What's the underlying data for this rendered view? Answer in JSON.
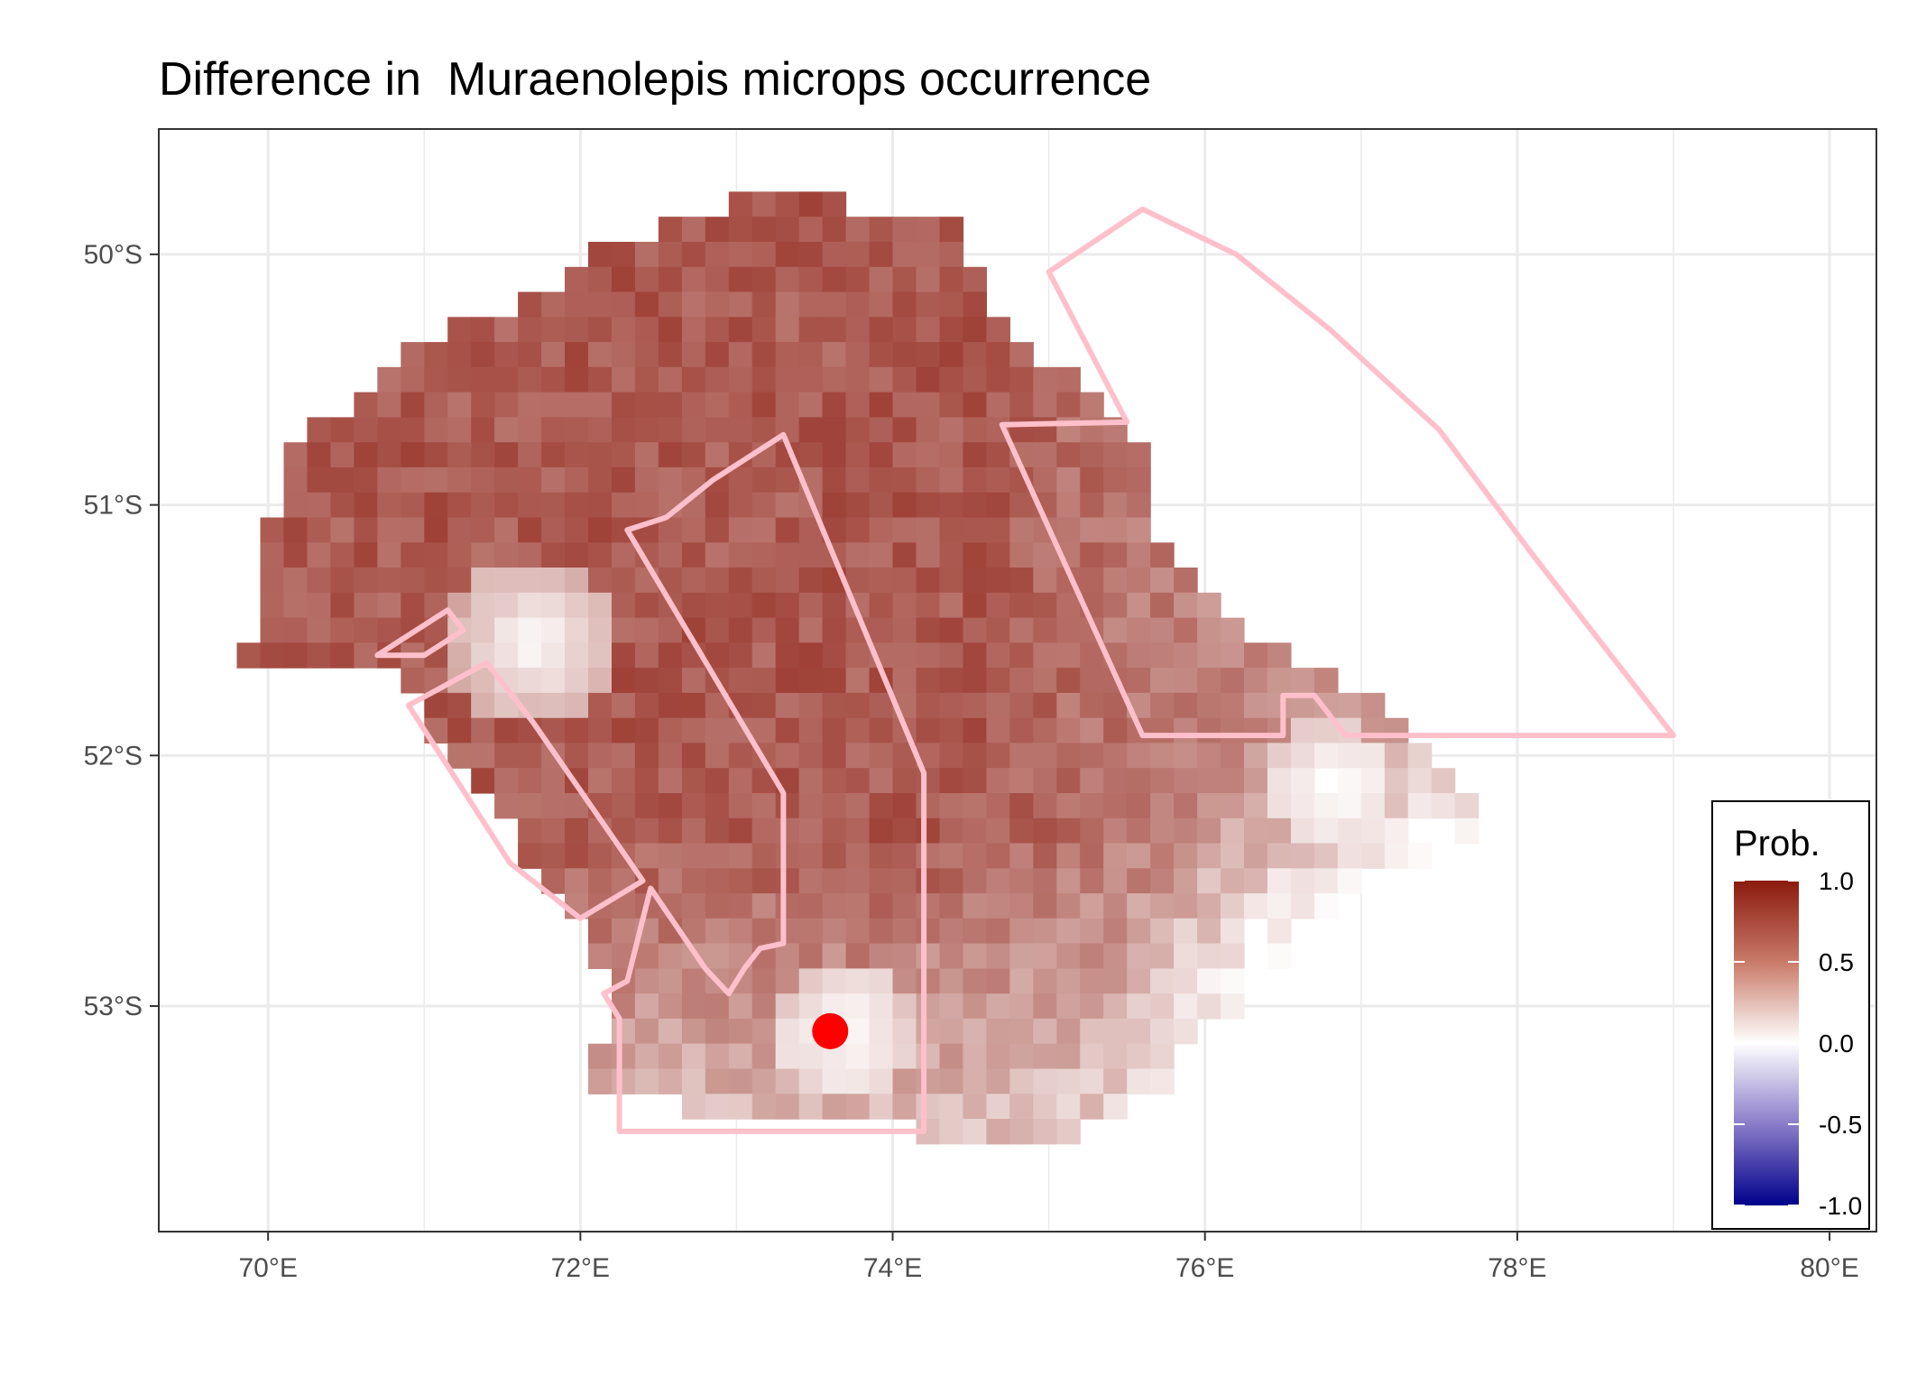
{
  "title": "Difference in  Muraenolepis microps occurrence",
  "colors": {
    "high": "#8b1a0e",
    "mid": "#ffffff",
    "low": "#00008b",
    "outline": "#ffc0cb",
    "point": "#ff0000",
    "grid": "#ebebeb",
    "panel_border": "#333333"
  },
  "axes": {
    "x": {
      "range": [
        69.3,
        80.3
      ],
      "ticks": [
        70,
        72,
        74,
        76,
        78,
        80
      ],
      "tick_labels": [
        "70°E",
        "72°E",
        "74°E",
        "76°E",
        "78°E",
        "80°E"
      ]
    },
    "y": {
      "range": [
        -53.9,
        -49.5
      ],
      "ticks": [
        -50,
        -51,
        -52,
        -53
      ],
      "tick_labels": [
        "50°S",
        "51°S",
        "52°S",
        "53°S"
      ]
    }
  },
  "legend": {
    "title": "Prob.",
    "labels": [
      "1.0",
      "0.5",
      "0.0",
      "-0.5",
      "-1.0"
    ],
    "values": [
      1.0,
      0.5,
      0.0,
      -0.5,
      -1.0
    ]
  },
  "map_data": {
    "cell_size_deg": {
      "lon": 0.15,
      "lat": 0.1
    },
    "region_outline": [
      [
        69.85,
        -51.6
      ],
      [
        70.05,
        -51.0
      ],
      [
        70.2,
        -50.7
      ],
      [
        70.5,
        -50.6
      ],
      [
        70.9,
        -50.4
      ],
      [
        71.2,
        -50.3
      ],
      [
        71.6,
        -50.2
      ],
      [
        72.1,
        -50.0
      ],
      [
        72.5,
        -49.9
      ],
      [
        72.9,
        -49.8
      ],
      [
        73.1,
        -49.7
      ],
      [
        73.4,
        -49.7
      ],
      [
        73.7,
        -49.8
      ],
      [
        74.0,
        -49.8
      ],
      [
        74.4,
        -49.9
      ],
      [
        74.6,
        -50.2
      ],
      [
        74.9,
        -50.4
      ],
      [
        75.2,
        -50.5
      ],
      [
        75.6,
        -50.8
      ],
      [
        75.7,
        -51.1
      ],
      [
        76.0,
        -51.3
      ],
      [
        76.2,
        -51.5
      ],
      [
        76.6,
        -51.6
      ],
      [
        76.9,
        -51.7
      ],
      [
        77.2,
        -51.85
      ],
      [
        77.5,
        -52.0
      ],
      [
        77.7,
        -52.2
      ],
      [
        78.0,
        -52.4
      ],
      [
        78.3,
        -52.7
      ],
      [
        78.5,
        -52.9
      ],
      [
        77.6,
        -53.0
      ],
      [
        76.8,
        -53.1
      ],
      [
        76.0,
        -53.25
      ],
      [
        75.3,
        -53.45
      ],
      [
        74.8,
        -53.6
      ],
      [
        74.2,
        -53.5
      ],
      [
        73.4,
        -53.45
      ],
      [
        72.6,
        -53.4
      ],
      [
        72.0,
        -53.35
      ],
      [
        72.1,
        -53.2
      ],
      [
        72.2,
        -52.9
      ],
      [
        71.9,
        -52.6
      ],
      [
        71.6,
        -52.35
      ],
      [
        71.2,
        -52.0
      ],
      [
        71.0,
        -51.85
      ],
      [
        70.8,
        -51.7
      ],
      [
        70.4,
        -51.65
      ],
      [
        70.0,
        -51.65
      ]
    ],
    "white_patches": [
      {
        "lon": 71.7,
        "lat": -51.55,
        "radius_deg": 0.35
      },
      {
        "lon": 73.7,
        "lat": -53.1,
        "radius_deg": 0.3
      },
      {
        "lon": 76.8,
        "lat": -52.1,
        "radius_deg": 0.25
      }
    ],
    "outlined_areas": [
      {
        "name": "fan-sector",
        "points": [
          [
            75.0,
            -50.07
          ],
          [
            75.6,
            -49.82
          ],
          [
            76.2,
            -50.0
          ],
          [
            76.8,
            -50.3
          ],
          [
            77.5,
            -50.7
          ],
          [
            78.1,
            -51.2
          ],
          [
            78.6,
            -51.6
          ],
          [
            79.0,
            -51.92
          ],
          [
            76.9,
            -51.92
          ],
          [
            76.7,
            -51.76
          ],
          [
            76.5,
            -51.76
          ],
          [
            76.5,
            -51.92
          ],
          [
            75.6,
            -51.92
          ],
          [
            74.7,
            -50.68
          ],
          [
            75.5,
            -50.67
          ]
        ]
      },
      {
        "name": "central-strip",
        "points": [
          [
            72.3,
            -51.1
          ],
          [
            72.55,
            -51.05
          ],
          [
            72.85,
            -50.9
          ],
          [
            73.3,
            -50.72
          ],
          [
            74.2,
            -52.07
          ],
          [
            74.2,
            -53.5
          ],
          [
            72.25,
            -53.5
          ],
          [
            72.25,
            -53.05
          ],
          [
            72.15,
            -52.95
          ],
          [
            72.3,
            -52.9
          ],
          [
            72.45,
            -52.53
          ],
          [
            72.8,
            -52.85
          ],
          [
            72.95,
            -52.95
          ],
          [
            73.05,
            -52.85
          ],
          [
            73.15,
            -52.77
          ],
          [
            73.3,
            -52.75
          ],
          [
            73.3,
            -52.15
          ]
        ]
      },
      {
        "name": "west-diagonal",
        "points": [
          [
            70.9,
            -51.8
          ],
          [
            71.4,
            -51.63
          ],
          [
            71.7,
            -51.87
          ],
          [
            72.4,
            -52.5
          ],
          [
            72.0,
            -52.65
          ],
          [
            71.55,
            -52.43
          ]
        ]
      },
      {
        "name": "small-triangle",
        "points": [
          [
            70.7,
            -51.6
          ],
          [
            71.15,
            -51.42
          ],
          [
            71.25,
            -51.5
          ],
          [
            71.0,
            -51.6
          ]
        ]
      }
    ],
    "sample_point": {
      "lon": 73.6,
      "lat": -53.1
    }
  }
}
